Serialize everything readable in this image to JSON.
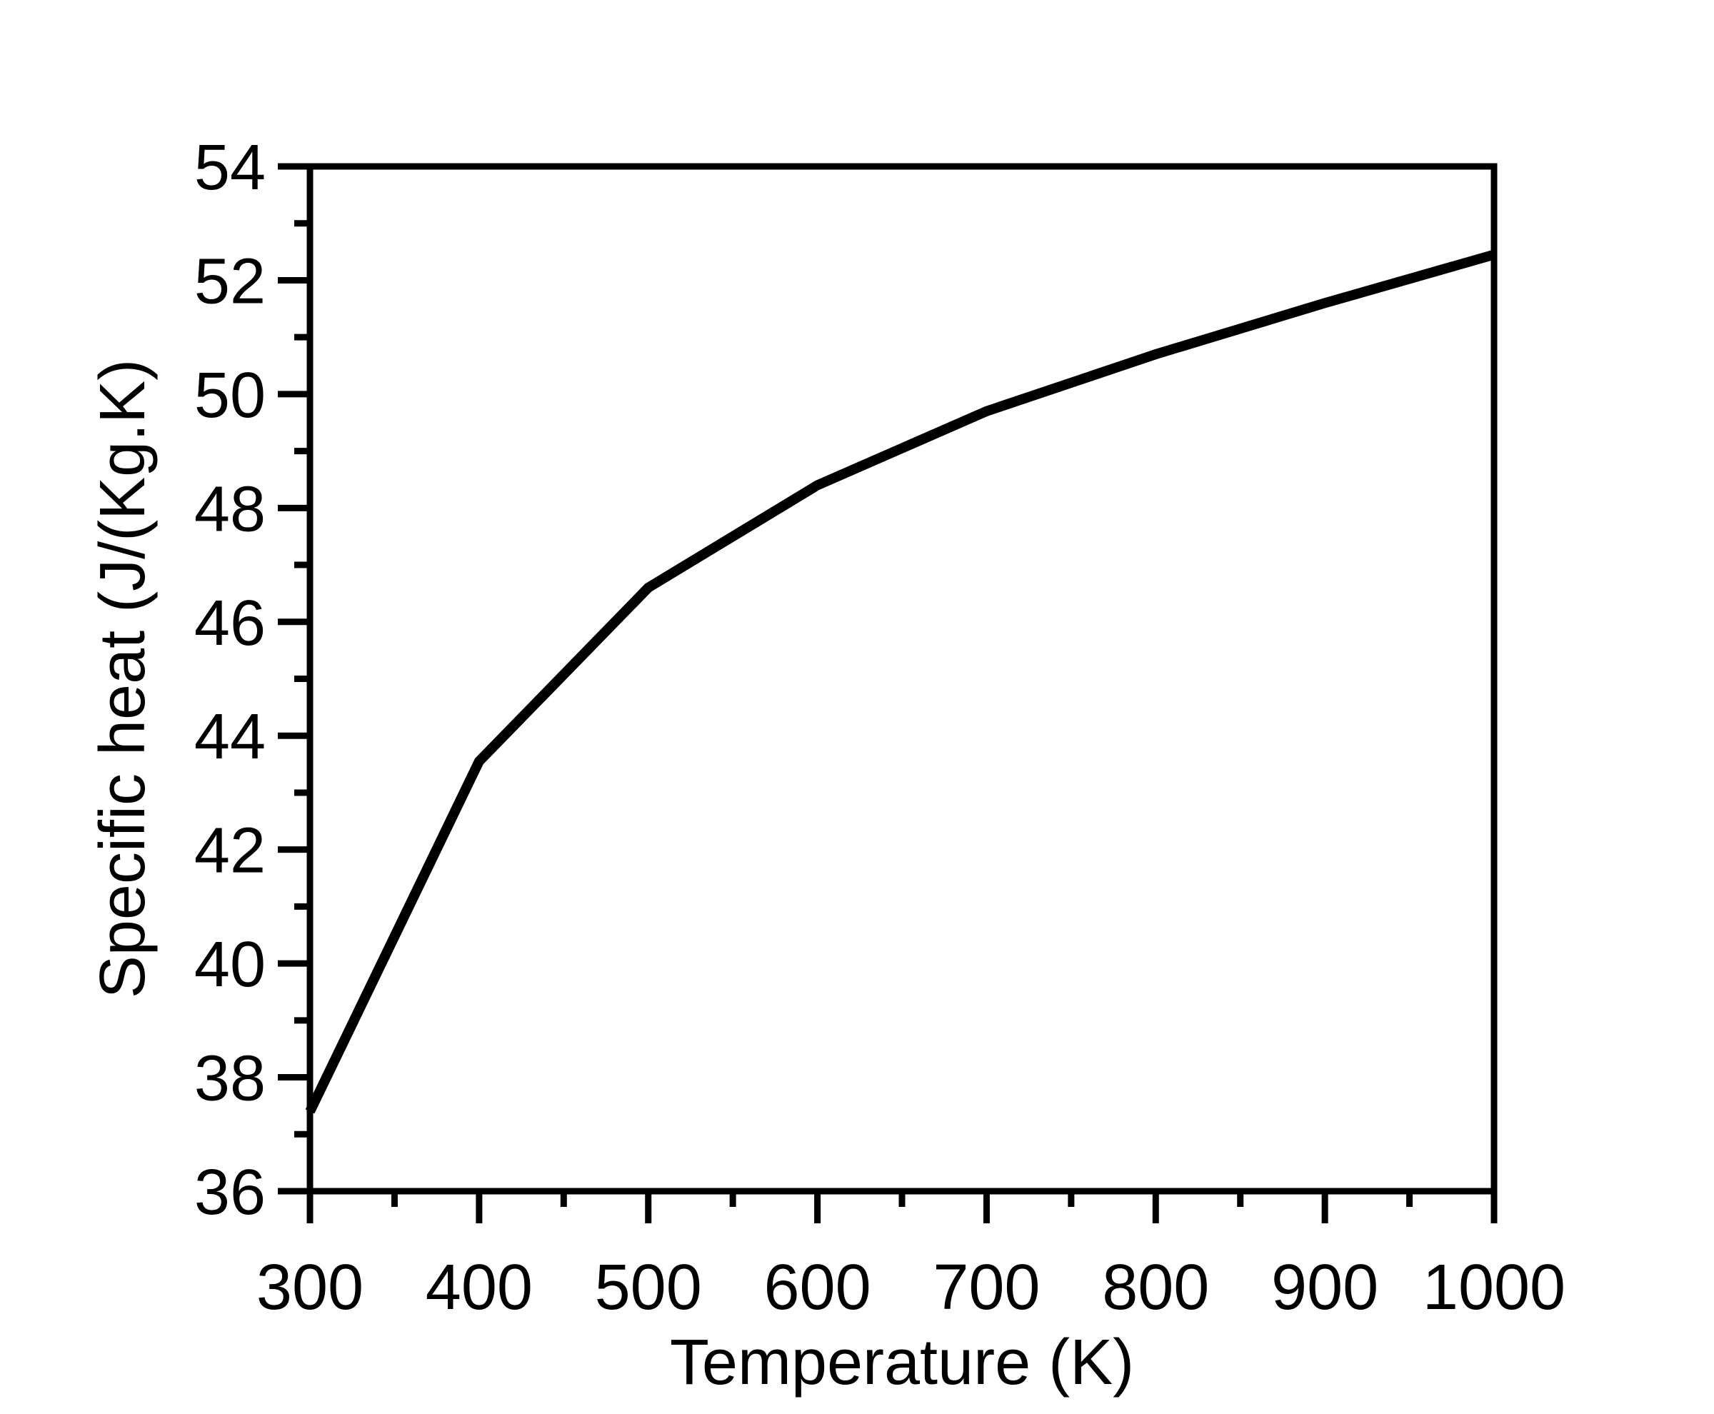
{
  "chart_data": {
    "type": "line",
    "title": "",
    "xlabel": "Temperature (K)",
    "ylabel": "Specific heat (J/(Kg.K)",
    "xlim": [
      300,
      1000
    ],
    "ylim": [
      36,
      54
    ],
    "x_ticks": [
      300,
      400,
      500,
      600,
      700,
      800,
      900,
      1000
    ],
    "y_ticks": [
      36,
      38,
      40,
      42,
      44,
      46,
      48,
      50,
      52,
      54
    ],
    "x_minor_step": 50,
    "y_minor_step": 1,
    "grid": false,
    "legend": "none",
    "series": [
      {
        "color": "#000000",
        "x": [
          300,
          400,
          500,
          600,
          700,
          800,
          900,
          1000
        ],
        "y": [
          37.4,
          43.55,
          46.6,
          48.4,
          49.7,
          50.7,
          51.6,
          52.45
        ]
      }
    ]
  }
}
